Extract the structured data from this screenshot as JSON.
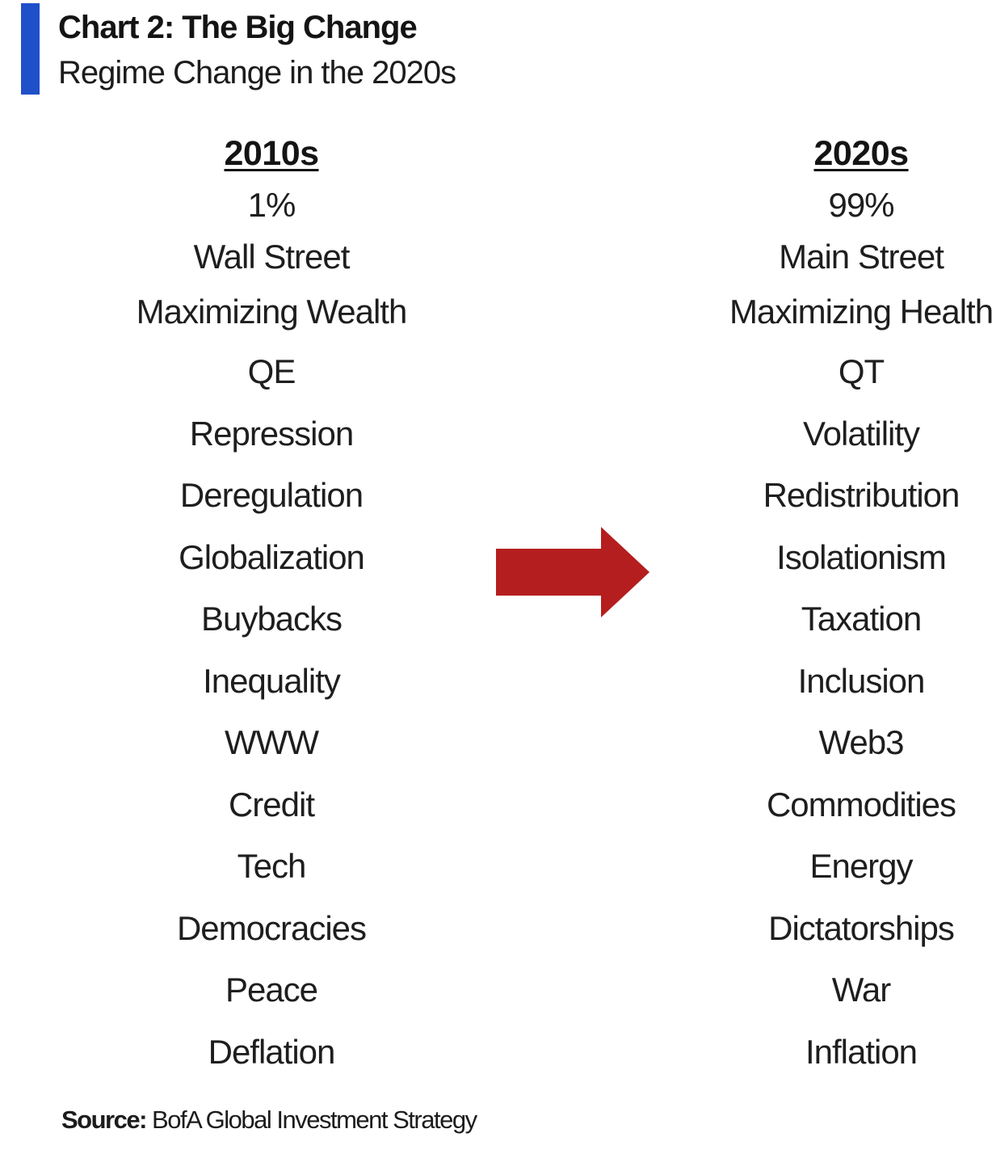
{
  "header": {
    "title": "Chart 2: The Big Change",
    "subtitle": "Regime Change in the 2020s",
    "accent_color": "#1f4fc9"
  },
  "columns": {
    "left": {
      "heading": "2010s",
      "items": [
        "1%",
        "Wall Street",
        "Maximizing Wealth",
        "QE",
        "Repression",
        "Deregulation",
        "Globalization",
        "Buybacks",
        "Inequality",
        "WWW",
        "Credit",
        "Tech",
        "Democracies",
        "Peace",
        "Deflation"
      ]
    },
    "right": {
      "heading": "2020s",
      "items": [
        "99%",
        "Main Street",
        "Maximizing Health",
        "QT",
        "Volatility",
        "Redistribution",
        "Isolationism",
        "Taxation",
        "Inclusion",
        "Web3",
        "Commodities",
        "Energy",
        "Dictatorships",
        "War",
        "Inflation"
      ]
    }
  },
  "arrow": {
    "icon": "right-arrow-icon",
    "color": "#b51e1e"
  },
  "footer": {
    "source_label": "Source:",
    "source_text": "BofA Global Investment Strategy"
  }
}
